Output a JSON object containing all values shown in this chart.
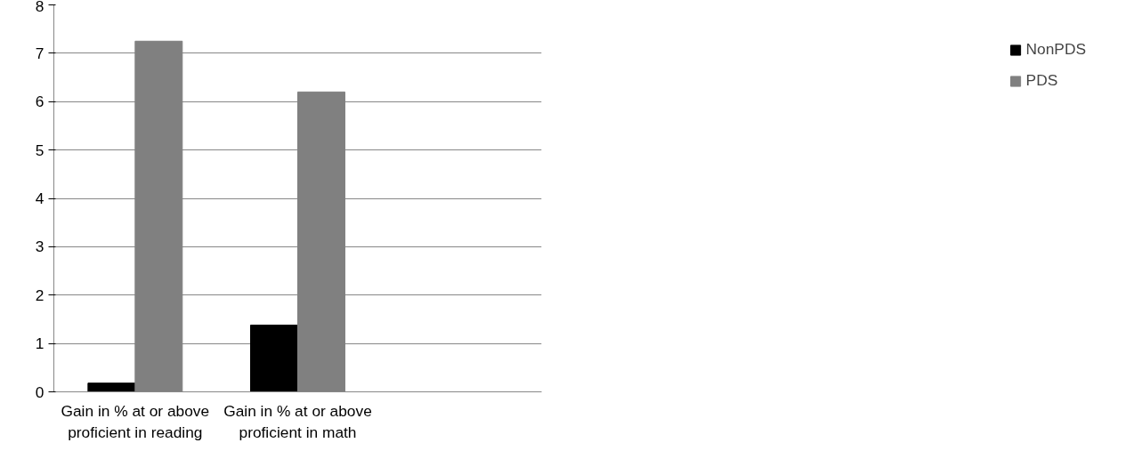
{
  "chart_data": {
    "type": "bar",
    "categories": [
      "Gain in % at or above proficient in reading",
      "Gain in % at or above proficient in math",
      null
    ],
    "series": [
      {
        "name": "NonPDS",
        "color": "#000000",
        "values": [
          0.18,
          1.38,
          null
        ]
      },
      {
        "name": "PDS",
        "color": "#808080",
        "values": [
          7.25,
          6.2,
          null
        ]
      }
    ],
    "ylim": [
      0,
      8
    ],
    "yticks": [
      0,
      1,
      2,
      3,
      4,
      5,
      6,
      7,
      8
    ],
    "grid": "y",
    "legend": "right"
  }
}
